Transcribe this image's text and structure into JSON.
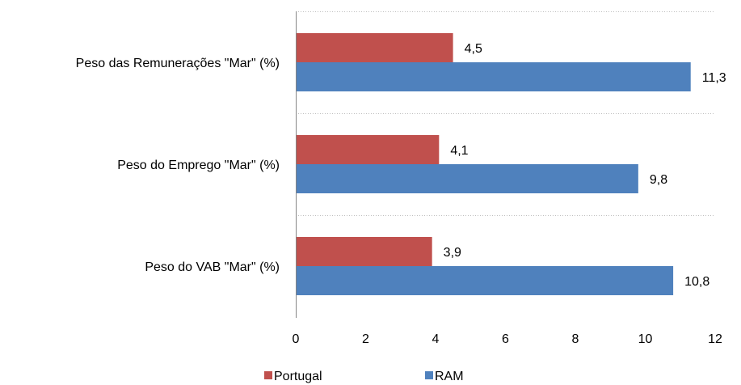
{
  "chart_data": {
    "type": "bar",
    "orientation": "horizontal",
    "categories": [
      "Peso das Remunerações \"Mar\" (%)",
      "Peso do Emprego \"Mar\" (%)",
      "Peso do VAB \"Mar\" (%)"
    ],
    "series": [
      {
        "name": "Portugal",
        "color": "#c0504d",
        "values": [
          4.5,
          4.1,
          3.9
        ],
        "labels": [
          "4,5",
          "4,1",
          "3,9"
        ]
      },
      {
        "name": "RAM",
        "color": "#4f81bd",
        "values": [
          11.3,
          9.8,
          10.8
        ],
        "labels": [
          "11,3",
          "9,8",
          "10,8"
        ]
      }
    ],
    "xlim": [
      0,
      12
    ],
    "xticks": [
      0,
      2,
      4,
      6,
      8,
      10,
      12
    ],
    "xtick_labels": [
      "0",
      "2",
      "4",
      "6",
      "8",
      "10",
      "12"
    ],
    "title": "",
    "xlabel": "",
    "ylabel": "",
    "grid": "dotted horizontal separators between categories",
    "legend_position": "bottom"
  }
}
